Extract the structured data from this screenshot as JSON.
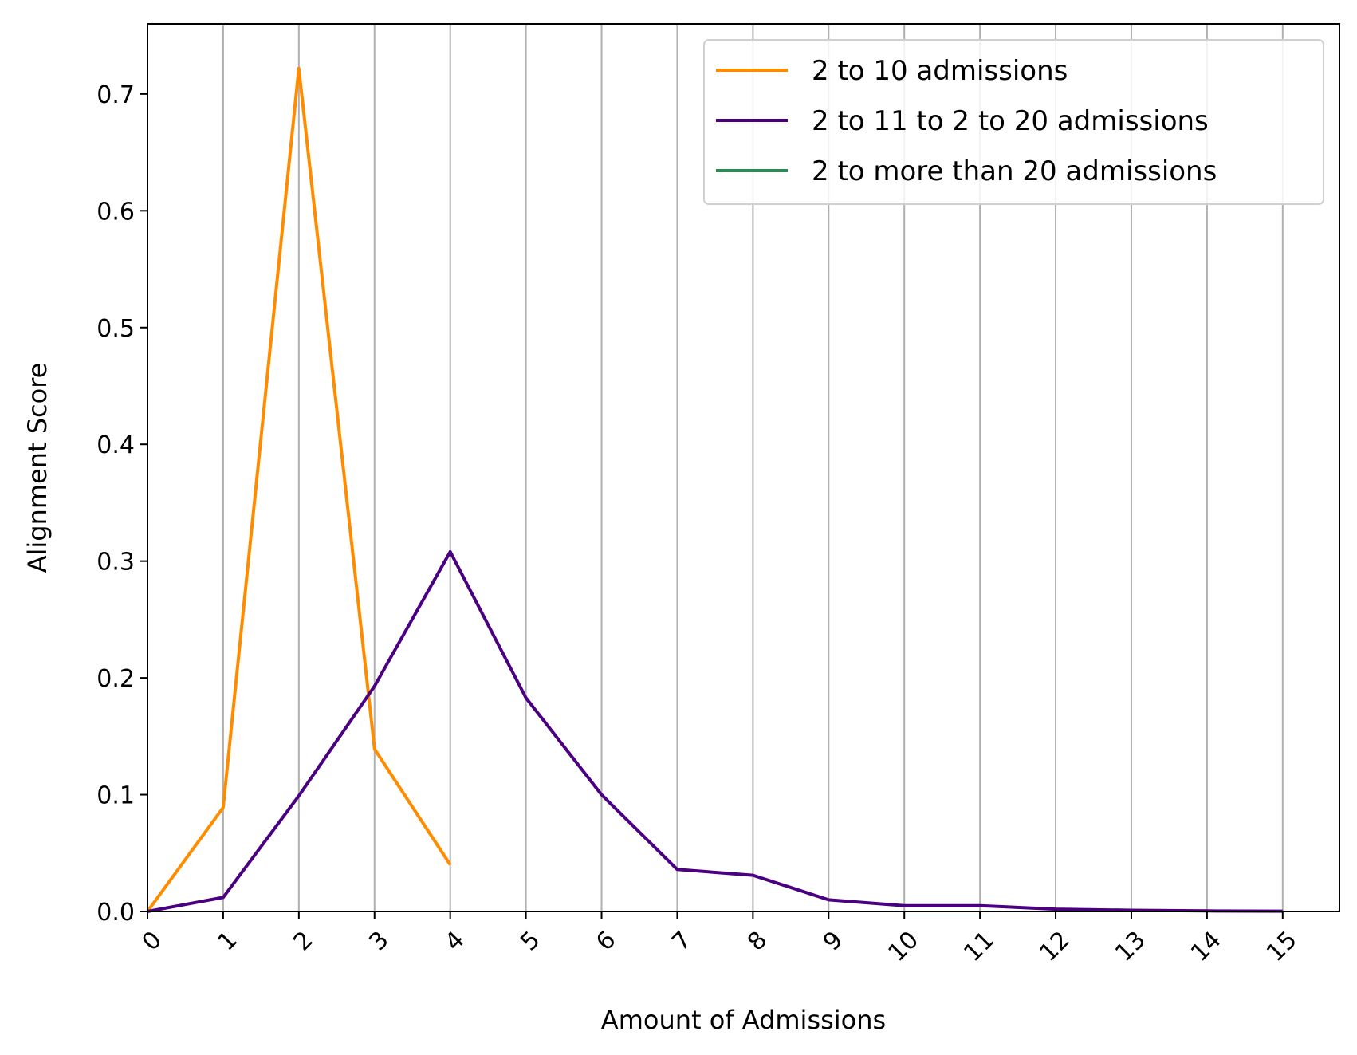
{
  "chart_data": {
    "type": "line",
    "title": "",
    "xlabel": "Amount of Admissions",
    "ylabel": "Alignment Score",
    "xlim": [
      0,
      15.75
    ],
    "ylim": [
      0,
      0.76
    ],
    "x_ticks": [
      0,
      1,
      2,
      3,
      4,
      5,
      6,
      7,
      8,
      9,
      10,
      11,
      12,
      13,
      14,
      15
    ],
    "x_tick_labels": [
      "0",
      "1",
      "2",
      "3",
      "4",
      "5",
      "6",
      "7",
      "8",
      "9",
      "10",
      "11",
      "12",
      "13",
      "14",
      "15"
    ],
    "y_ticks": [
      0.0,
      0.1,
      0.2,
      0.3,
      0.4,
      0.5,
      0.6,
      0.7
    ],
    "y_tick_labels": [
      "0.0",
      "0.1",
      "0.2",
      "0.3",
      "0.4",
      "0.5",
      "0.6",
      "0.7"
    ],
    "grid": "x-axis vertical lines",
    "legend_position": "top-right",
    "series": [
      {
        "name": "2 to 10 admissions",
        "color": "#ff8c00",
        "x": [
          0,
          1,
          2,
          3,
          4
        ],
        "values": [
          0.0,
          0.089,
          0.722,
          0.139,
          0.04
        ]
      },
      {
        "name": "2 to 11 to 2 to 20 admissions",
        "color": "#4b0082",
        "x": [
          0,
          1,
          2,
          3,
          4,
          5,
          6,
          7,
          8,
          9,
          10,
          11,
          12,
          13,
          14,
          15
        ],
        "values": [
          0.0,
          0.012,
          0.099,
          0.193,
          0.308,
          0.183,
          0.1,
          0.036,
          0.031,
          0.01,
          0.005,
          0.005,
          0.002,
          0.001,
          0.0005,
          0.0003
        ]
      },
      {
        "name": "2 to more than 20 admissions",
        "color": "#2e8b57",
        "x": [],
        "values": []
      }
    ]
  }
}
